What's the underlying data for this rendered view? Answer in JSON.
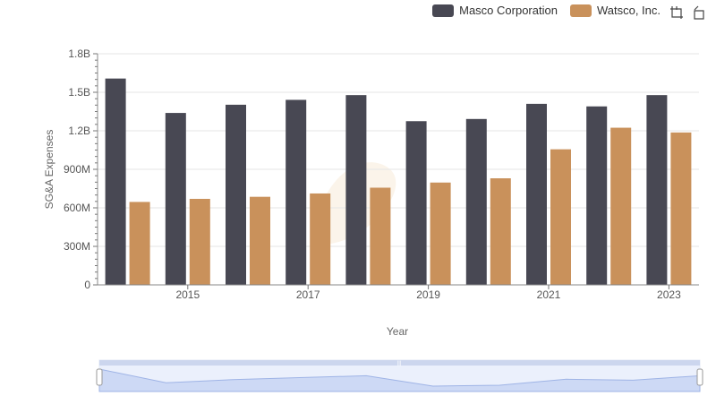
{
  "legend": [
    {
      "name": "Masco Corporation",
      "color": "#484853"
    },
    {
      "name": "Watsco, Inc.",
      "color": "#c9915b"
    }
  ],
  "toolbar": {
    "icons": [
      "zoom-select-icon",
      "zoom-reset-icon"
    ]
  },
  "chart_data": {
    "type": "bar",
    "categories": [
      "2014",
      "2015",
      "2016",
      "2017",
      "2018",
      "2019",
      "2020",
      "2021",
      "2022",
      "2023"
    ],
    "x_tick_labels": [
      "2015",
      "2017",
      "2019",
      "2021",
      "2023"
    ],
    "xlabel": "Year",
    "ylabel": "SG&A Expenses",
    "ylim": [
      0,
      1800000000
    ],
    "y_tick_labels": [
      "0",
      "300M",
      "600M",
      "900M",
      "1.2B",
      "1.5B",
      "1.8B"
    ],
    "grid": true,
    "legend_position": "top-right",
    "series": [
      {
        "name": "Masco Corporation",
        "color": "#484853",
        "values": [
          1607000000,
          1339000000,
          1403000000,
          1441000000,
          1478000000,
          1275000000,
          1292000000,
          1410000000,
          1390000000,
          1478000000
        ]
      },
      {
        "name": "Watsco, Inc.",
        "color": "#c9915b",
        "values": [
          646000000,
          670000000,
          686000000,
          712000000,
          757000000,
          797000000,
          830000000,
          1056000000,
          1224000000,
          1187000000
        ]
      }
    ]
  }
}
